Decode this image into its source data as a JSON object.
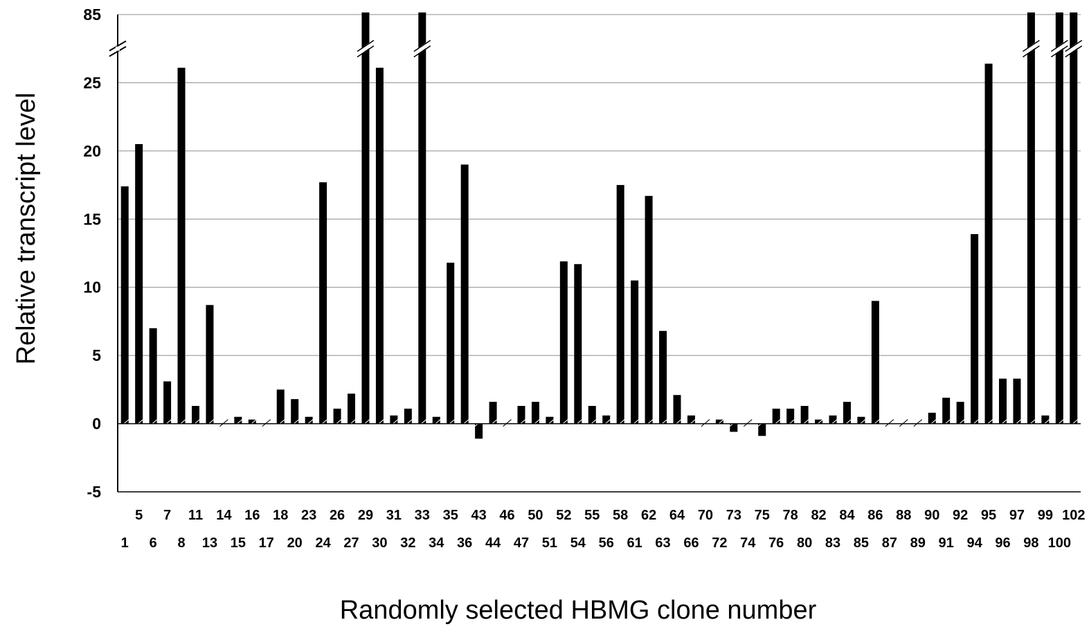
{
  "chart_data": {
    "type": "bar",
    "title": "",
    "xlabel": "Randomly selected HBMG clone number",
    "ylabel": "Relative transcript level",
    "ylim": [
      -5,
      30
    ],
    "y_ticks": [
      "-5",
      "0",
      "5",
      "10",
      "15",
      "20",
      "25",
      "85"
    ],
    "y_tick_values": [
      -5,
      0,
      5,
      10,
      15,
      20,
      25,
      30
    ],
    "axis_break": {
      "upper_value": 85
    },
    "grid": true,
    "legend": "none",
    "bar_color": "#000000",
    "categories": [
      "1",
      "5",
      "6",
      "7",
      "8",
      "11",
      "13",
      "14",
      "15",
      "16",
      "17",
      "18",
      "20",
      "23",
      "24",
      "26",
      "27",
      "29",
      "30",
      "31",
      "32",
      "33",
      "34",
      "35",
      "36",
      "43",
      "44",
      "46",
      "47",
      "50",
      "51",
      "52",
      "54",
      "55",
      "56",
      "58",
      "61",
      "62",
      "63",
      "64",
      "66",
      "70",
      "72",
      "73",
      "74",
      "75",
      "76",
      "78",
      "80",
      "82",
      "83",
      "84",
      "85",
      "86",
      "87",
      "88",
      "89",
      "90",
      "91",
      "92",
      "94",
      "95",
      "96",
      "97",
      "98",
      "99",
      "100",
      "102"
    ],
    "values": [
      17.4,
      20.5,
      7.0,
      3.1,
      26.1,
      1.3,
      8.7,
      0,
      0.5,
      0.3,
      0,
      2.5,
      1.8,
      0.5,
      17.7,
      1.1,
      2.2,
      85,
      26.1,
      0.6,
      1.1,
      85,
      0.5,
      11.8,
      19.0,
      -1.1,
      1.6,
      0,
      1.3,
      1.6,
      0.5,
      11.9,
      11.7,
      1.3,
      0.6,
      17.5,
      10.5,
      16.7,
      6.8,
      2.1,
      0.6,
      0,
      0.3,
      -0.6,
      0,
      -0.9,
      1.1,
      1.1,
      1.3,
      0.3,
      0.6,
      1.6,
      0.5,
      9.0,
      0,
      0,
      0,
      0.8,
      1.9,
      1.6,
      13.9,
      26.4,
      3.3,
      3.3,
      85,
      0.6,
      85,
      85
    ]
  }
}
